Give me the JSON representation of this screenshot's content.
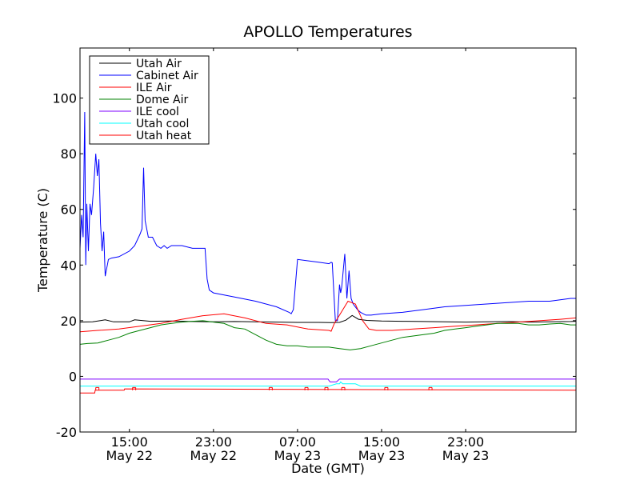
{
  "chart_data": {
    "type": "line",
    "title": "APOLLO Temperatures",
    "xlabel": "Date (GMT)",
    "ylabel": "Temperature (C)",
    "ylim": [
      -20,
      118
    ],
    "xlim_hours": [
      10.3,
      57.5
    ],
    "y_ticks": [
      -20,
      0,
      20,
      40,
      60,
      80,
      100
    ],
    "x_ticks": [
      {
        "hour": 15,
        "time": "15:00",
        "date": "May 22"
      },
      {
        "hour": 23,
        "time": "23:00",
        "date": "May 22"
      },
      {
        "hour": 31,
        "time": "07:00",
        "date": "May 23"
      },
      {
        "hour": 39,
        "time": "15:00",
        "date": "May 23"
      },
      {
        "hour": 47,
        "time": "23:00",
        "date": "May 23"
      }
    ],
    "legend_position": "top-left",
    "series": [
      {
        "name": "Utah Air",
        "color": "#000000",
        "x": [
          10.3,
          11.5,
          12.7,
          13.5,
          15,
          15.5,
          17,
          19,
          21,
          23,
          25,
          27,
          29,
          31,
          33,
          34.2,
          35,
          35.6,
          36.2,
          36.8,
          37.6,
          39,
          41,
          43,
          45,
          47,
          49,
          51,
          53,
          55,
          57,
          57.5
        ],
        "y": [
          19.5,
          19.6,
          20.3,
          19.6,
          19.6,
          20.3,
          19.8,
          19.9,
          19.7,
          19.6,
          19.7,
          19.6,
          19.5,
          19.4,
          19.4,
          19.3,
          19.4,
          20.2,
          21.9,
          20.5,
          20.1,
          19.9,
          19.8,
          19.7,
          19.6,
          19.5,
          19.6,
          19.7,
          19.5,
          19.6,
          19.7,
          19.8
        ]
      },
      {
        "name": "Cabinet Air",
        "color": "#0000ff",
        "x": [
          10.3,
          10.45,
          10.6,
          10.75,
          10.85,
          10.95,
          11.1,
          11.25,
          11.4,
          11.6,
          11.8,
          11.95,
          12.1,
          12.25,
          12.4,
          12.55,
          12.7,
          12.8,
          12.9,
          13.0,
          13.3,
          14,
          15,
          15.5,
          16,
          16.2,
          16.35,
          16.5,
          16.8,
          17.2,
          17.6,
          18,
          18.3,
          18.6,
          19,
          20,
          21,
          22.2,
          22.4,
          22.6,
          23,
          25,
          27,
          29,
          30.2,
          30.4,
          30.6,
          31,
          33,
          34,
          34.2,
          34.3,
          34.6,
          34.8,
          35,
          35.1,
          35.2,
          35.5,
          35.7,
          35.9,
          36.1,
          36.3,
          36.7,
          37,
          37.5,
          38,
          39,
          41,
          43,
          45,
          47,
          49,
          51,
          53,
          55,
          57,
          57.5
        ],
        "y": [
          46,
          58,
          50,
          95,
          40,
          62,
          45,
          62,
          58,
          68,
          80,
          72,
          78,
          55,
          45,
          52,
          36,
          38,
          40,
          42,
          42.5,
          43,
          45,
          47,
          51,
          53,
          75,
          56,
          50,
          50,
          47,
          46,
          47,
          46,
          47,
          47,
          46,
          46,
          35,
          31,
          30,
          28.5,
          27,
          25,
          23,
          22.5,
          24,
          42,
          41,
          40.5,
          41,
          40.8,
          20,
          20,
          33,
          30,
          32,
          44,
          28,
          38,
          28,
          26,
          24,
          23,
          22,
          22,
          22.5,
          23,
          24,
          25,
          25.5,
          26,
          26.5,
          27,
          27,
          28,
          28
        ]
      },
      {
        "name": "ILE Air",
        "color": "#ff0000",
        "x": [
          10.3,
          12,
          14,
          16,
          18,
          20,
          22,
          24,
          26,
          28,
          30,
          32,
          34,
          34.2,
          34.5,
          35,
          35.8,
          36.5,
          37.2,
          37.8,
          38.5,
          40,
          42,
          44,
          46,
          48,
          50,
          52,
          54,
          56,
          57.5
        ],
        "y": [
          16,
          16.5,
          17,
          18,
          19,
          20.5,
          21.8,
          22.5,
          21,
          19,
          18.5,
          17,
          16.5,
          16.2,
          19,
          22,
          27,
          26,
          20,
          17,
          16.5,
          16.5,
          17,
          17.5,
          18,
          18.5,
          19,
          19.5,
          20,
          20.5,
          21
        ]
      },
      {
        "name": "Dome Air",
        "color": "#008000",
        "x": [
          10.3,
          11,
          12,
          13,
          14,
          15,
          16,
          17,
          18,
          19,
          20,
          21,
          22,
          23,
          24,
          25,
          26,
          27,
          28,
          29,
          30,
          31,
          32,
          33,
          34,
          35,
          36,
          37,
          38,
          39,
          40,
          41,
          42,
          43,
          44,
          45,
          46,
          47,
          48,
          49,
          50,
          51,
          52,
          53,
          54,
          55,
          56,
          57,
          57.5
        ],
        "y": [
          11.5,
          11.8,
          12,
          13,
          14,
          15.5,
          16.5,
          17.5,
          18.5,
          19,
          19.5,
          19.8,
          20,
          19.5,
          19,
          17.5,
          17,
          15,
          13,
          11.5,
          11,
          11,
          10.5,
          10.5,
          10.5,
          10,
          9.5,
          10,
          11,
          12,
          13,
          14,
          14.5,
          15,
          15.5,
          16.5,
          17,
          17.5,
          18,
          18.5,
          19,
          19,
          19,
          18.5,
          18.5,
          18.8,
          19,
          18.5,
          18.5
        ]
      },
      {
        "name": "ILE cool",
        "color": "#7f00ff",
        "x": [
          10.3,
          33.9,
          34.1,
          34.7,
          35,
          57.5
        ],
        "y": [
          -1,
          -1,
          -2,
          -2,
          -1,
          -1
        ]
      },
      {
        "name": "Utah cool",
        "color": "#00ffff",
        "x": [
          10.3,
          34.0,
          34.7,
          35.0,
          35.1,
          35.3,
          36.5,
          37.0,
          57.5
        ],
        "y": [
          -3.5,
          -3.5,
          -2.7,
          -2.7,
          -2,
          -2.7,
          -2.7,
          -3.5,
          -3.5
        ]
      },
      {
        "name": "Utah heat",
        "color": "#ff0000",
        "x": [
          10.3,
          11.7,
          11.75,
          14.5,
          14.55,
          57.5
        ],
        "y": [
          -6,
          -6,
          -5,
          -5,
          -4.5,
          -5
        ]
      }
    ],
    "heat_spikes_hours": [
      11.8,
      15.3,
      28.3,
      31.7,
      33.6,
      35.2,
      39.3,
      43.5
    ]
  }
}
